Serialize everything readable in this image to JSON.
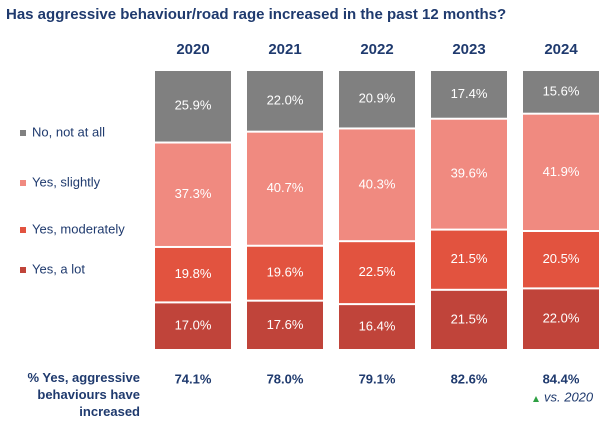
{
  "chart_data": {
    "type": "stacked_bar_100",
    "title": "Has aggressive behaviour/road rage increased in the past 12 months?",
    "categories": [
      "2020",
      "2021",
      "2022",
      "2023",
      "2024"
    ],
    "series": [
      {
        "name": "Yes, a lot",
        "color": "#c0443a",
        "values": [
          17.0,
          17.6,
          16.4,
          21.5,
          22.0
        ],
        "value_labels": [
          "17.0%",
          "17.6%",
          "16.4%",
          "21.5%",
          "22.0%"
        ]
      },
      {
        "name": "Yes, moderately",
        "color": "#e2533f",
        "values": [
          19.8,
          19.6,
          22.5,
          21.5,
          20.5
        ],
        "value_labels": [
          "19.8%",
          "19.6%",
          "22.5%",
          "21.5%",
          "20.5%"
        ]
      },
      {
        "name": "Yes, slightly",
        "color": "#f08a80",
        "values": [
          37.3,
          40.7,
          40.3,
          39.6,
          41.9
        ],
        "value_labels": [
          "37.3%",
          "40.7%",
          "40.3%",
          "39.6%",
          "41.9%"
        ]
      },
      {
        "name": "No, not at all",
        "color": "#808080",
        "values": [
          25.9,
          22.0,
          20.9,
          17.4,
          15.6
        ],
        "value_labels": [
          "25.9%",
          "22.0%",
          "20.9%",
          "17.4%",
          "15.6%"
        ]
      }
    ],
    "totals": {
      "label": "% Yes, aggressive behaviours have increased",
      "values": [
        74.1,
        78.0,
        79.1,
        82.6,
        84.4
      ],
      "value_labels": [
        "74.1%",
        "78.0%",
        "79.1%",
        "82.6%",
        "84.4%"
      ]
    },
    "annotation": "vs. 2020"
  }
}
